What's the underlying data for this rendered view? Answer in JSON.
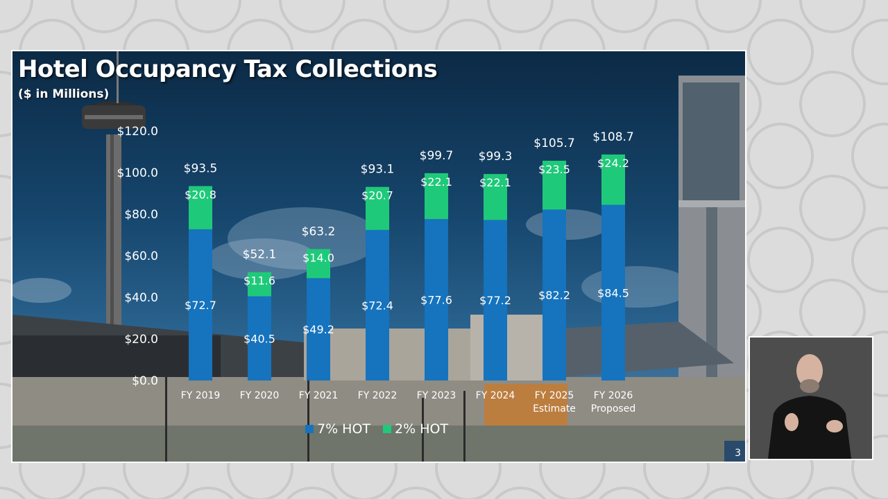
{
  "slide": {
    "title": "Hotel Occupancy Tax Collections",
    "subtitle": "($ in Millions)",
    "page_number": "3"
  },
  "colors": {
    "hot7": "#1673bd",
    "hot2": "#1fc97a"
  },
  "chart_data": {
    "type": "bar",
    "stacked": true,
    "title": "Hotel Occupancy Tax Collections",
    "subtitle": "($ in Millions)",
    "categories": [
      [
        "FY 2019"
      ],
      [
        "FY 2020"
      ],
      [
        "FY 2021"
      ],
      [
        "FY 2022"
      ],
      [
        "FY 2023"
      ],
      [
        "FY 2024"
      ],
      [
        "FY 2025",
        "Estimate"
      ],
      [
        "FY 2026",
        "Proposed"
      ]
    ],
    "series": [
      {
        "name": "7% HOT",
        "values": [
          72.7,
          40.5,
          49.2,
          72.4,
          77.6,
          77.2,
          82.2,
          84.5
        ],
        "labels": [
          "$72.7",
          "$40.5",
          "$49.2",
          "$72.4",
          "$77.6",
          "$77.2",
          "$82.2",
          "$84.5"
        ]
      },
      {
        "name": "2% HOT",
        "values": [
          20.8,
          11.6,
          14.0,
          20.7,
          22.1,
          22.1,
          23.5,
          24.2
        ],
        "labels": [
          "$20.8",
          "$11.6",
          "$14.0",
          "$20.7",
          "$22.1",
          "$22.1",
          "$23.5",
          "$24.2"
        ]
      }
    ],
    "totals": [
      "$93.5",
      "$52.1",
      "$63.2",
      "$93.1",
      "$99.7",
      "$99.3",
      "$105.7",
      "$108.7"
    ],
    "y_ticks": [
      "$0.0",
      "$20.0",
      "$40.0",
      "$60.0",
      "$80.0",
      "$100.0",
      "$120.0"
    ],
    "ylim": [
      0,
      120
    ],
    "grid": false,
    "legend_position": "bottom"
  }
}
